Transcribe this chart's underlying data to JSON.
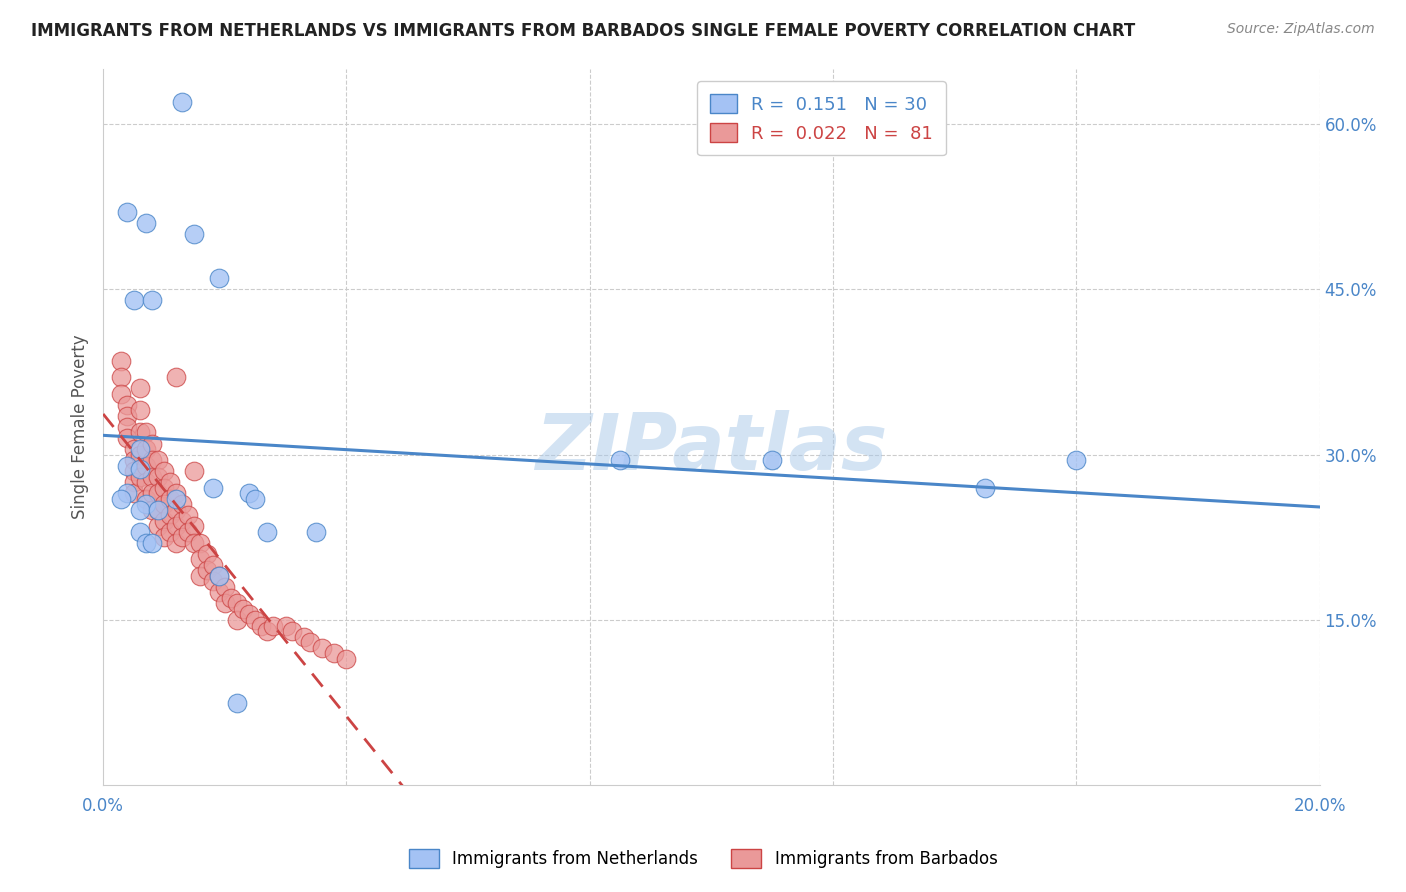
{
  "title": "IMMIGRANTS FROM NETHERLANDS VS IMMIGRANTS FROM BARBADOS SINGLE FEMALE POVERTY CORRELATION CHART",
  "source": "Source: ZipAtlas.com",
  "ylabel": "Single Female Poverty",
  "xlim": [
    0.0,
    0.2
  ],
  "ylim": [
    0.0,
    0.65
  ],
  "x_ticks": [
    0.0,
    0.04,
    0.08,
    0.12,
    0.16,
    0.2
  ],
  "x_tick_labels": [
    "0.0%",
    "",
    "",
    "",
    "",
    "20.0%"
  ],
  "y_ticks_right": [
    0.15,
    0.3,
    0.45,
    0.6
  ],
  "y_tick_labels_right": [
    "15.0%",
    "30.0%",
    "45.0%",
    "60.0%"
  ],
  "color_netherlands": "#a4c2f4",
  "color_barbados": "#ea9999",
  "color_netherlands_line": "#4a86c8",
  "color_barbados_line": "#cc4444",
  "R_netherlands": 0.151,
  "N_netherlands": 30,
  "R_barbados": 0.022,
  "N_barbados": 81,
  "netherlands_x": [
    0.013,
    0.015,
    0.004,
    0.007,
    0.019,
    0.005,
    0.008,
    0.006,
    0.004,
    0.006,
    0.004,
    0.003,
    0.007,
    0.006,
    0.012,
    0.009,
    0.006,
    0.007,
    0.008,
    0.018,
    0.024,
    0.025,
    0.085,
    0.11,
    0.16,
    0.145,
    0.027,
    0.035,
    0.019,
    0.022
  ],
  "netherlands_y": [
    0.62,
    0.5,
    0.52,
    0.51,
    0.46,
    0.44,
    0.44,
    0.305,
    0.29,
    0.287,
    0.265,
    0.26,
    0.255,
    0.25,
    0.26,
    0.25,
    0.23,
    0.22,
    0.22,
    0.27,
    0.265,
    0.26,
    0.295,
    0.295,
    0.295,
    0.27,
    0.23,
    0.23,
    0.19,
    0.075
  ],
  "barbados_x": [
    0.003,
    0.003,
    0.003,
    0.004,
    0.004,
    0.004,
    0.004,
    0.005,
    0.005,
    0.005,
    0.005,
    0.005,
    0.006,
    0.006,
    0.006,
    0.006,
    0.006,
    0.007,
    0.007,
    0.007,
    0.007,
    0.007,
    0.008,
    0.008,
    0.008,
    0.008,
    0.008,
    0.009,
    0.009,
    0.009,
    0.009,
    0.009,
    0.01,
    0.01,
    0.01,
    0.01,
    0.01,
    0.011,
    0.011,
    0.011,
    0.011,
    0.012,
    0.012,
    0.012,
    0.012,
    0.012,
    0.013,
    0.013,
    0.013,
    0.014,
    0.014,
    0.015,
    0.015,
    0.015,
    0.016,
    0.016,
    0.016,
    0.017,
    0.017,
    0.018,
    0.018,
    0.019,
    0.019,
    0.02,
    0.02,
    0.021,
    0.022,
    0.022,
    0.023,
    0.024,
    0.025,
    0.026,
    0.027,
    0.028,
    0.03,
    0.031,
    0.033,
    0.034,
    0.036,
    0.038,
    0.04
  ],
  "barbados_y": [
    0.385,
    0.37,
    0.355,
    0.345,
    0.335,
    0.325,
    0.315,
    0.305,
    0.295,
    0.285,
    0.275,
    0.265,
    0.36,
    0.34,
    0.32,
    0.3,
    0.28,
    0.32,
    0.305,
    0.29,
    0.275,
    0.26,
    0.31,
    0.295,
    0.28,
    0.265,
    0.25,
    0.295,
    0.28,
    0.265,
    0.25,
    0.235,
    0.285,
    0.27,
    0.255,
    0.24,
    0.225,
    0.275,
    0.26,
    0.245,
    0.23,
    0.37,
    0.265,
    0.25,
    0.235,
    0.22,
    0.255,
    0.24,
    0.225,
    0.245,
    0.23,
    0.285,
    0.235,
    0.22,
    0.22,
    0.205,
    0.19,
    0.21,
    0.195,
    0.2,
    0.185,
    0.19,
    0.175,
    0.18,
    0.165,
    0.17,
    0.165,
    0.15,
    0.16,
    0.155,
    0.15,
    0.145,
    0.14,
    0.145,
    0.145,
    0.14,
    0.135,
    0.13,
    0.125,
    0.12,
    0.115
  ],
  "watermark": "ZIPatlas",
  "background_color": "#ffffff",
  "grid_color": "#cccccc"
}
